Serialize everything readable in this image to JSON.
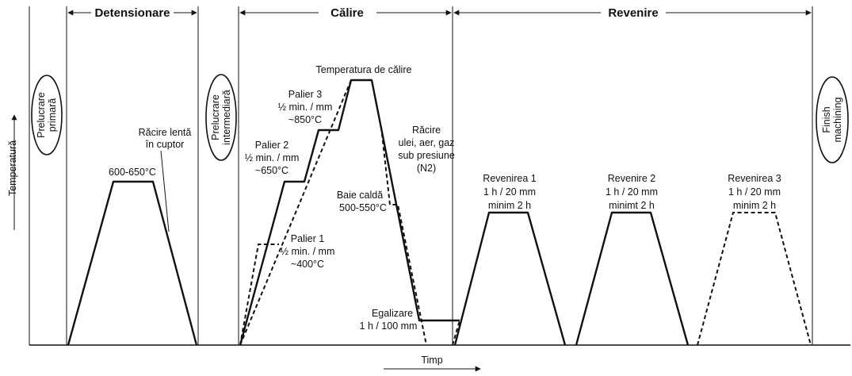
{
  "sections": {
    "detensionare": "Detensionare",
    "calire": "Călire",
    "revenire": "Revenire"
  },
  "ovals": {
    "prelucrare_primara": [
      "Prelucrare",
      "primară"
    ],
    "prelucrare_intermediara": [
      "Prelucrare",
      "intermediară"
    ],
    "finish_machining": [
      "Finish",
      "machining"
    ]
  },
  "axes": {
    "y_label": "Temperatură",
    "x_label": "Timp"
  },
  "labels": {
    "detens_temp": "600-650°C",
    "racire_lenta": [
      "Răcire lentă",
      "în cuptor"
    ],
    "temperatura_calire": "Temperatura de călire",
    "palier3": [
      "Palier 3",
      "½ min. / mm",
      "~850°C"
    ],
    "palier2": [
      "Palier 2",
      "½ min. / mm",
      "~650°C"
    ],
    "palier1": [
      "Palier 1",
      "½ min. / mm",
      "~400°C"
    ],
    "racire": [
      "Răcire",
      "ulei, aer, gaz",
      "sub presiune",
      "(N2)"
    ],
    "baie_calda": [
      "Baie caldă",
      "500-550°C"
    ],
    "egalizare": [
      "Egalizare",
      "1 h / 100 mm"
    ],
    "revenirea1": [
      "Revenirea 1",
      "1 h / 20 mm",
      "minim 2 h"
    ],
    "revenire2": [
      "Revenire 2",
      "1 h / 20 mm",
      "minimt 2 h"
    ],
    "revenirea3": [
      "Revenirea 3",
      "1 h / 20 mm",
      "minim 2 h"
    ]
  },
  "colors": {
    "line": "#111111",
    "background": "#ffffff"
  }
}
